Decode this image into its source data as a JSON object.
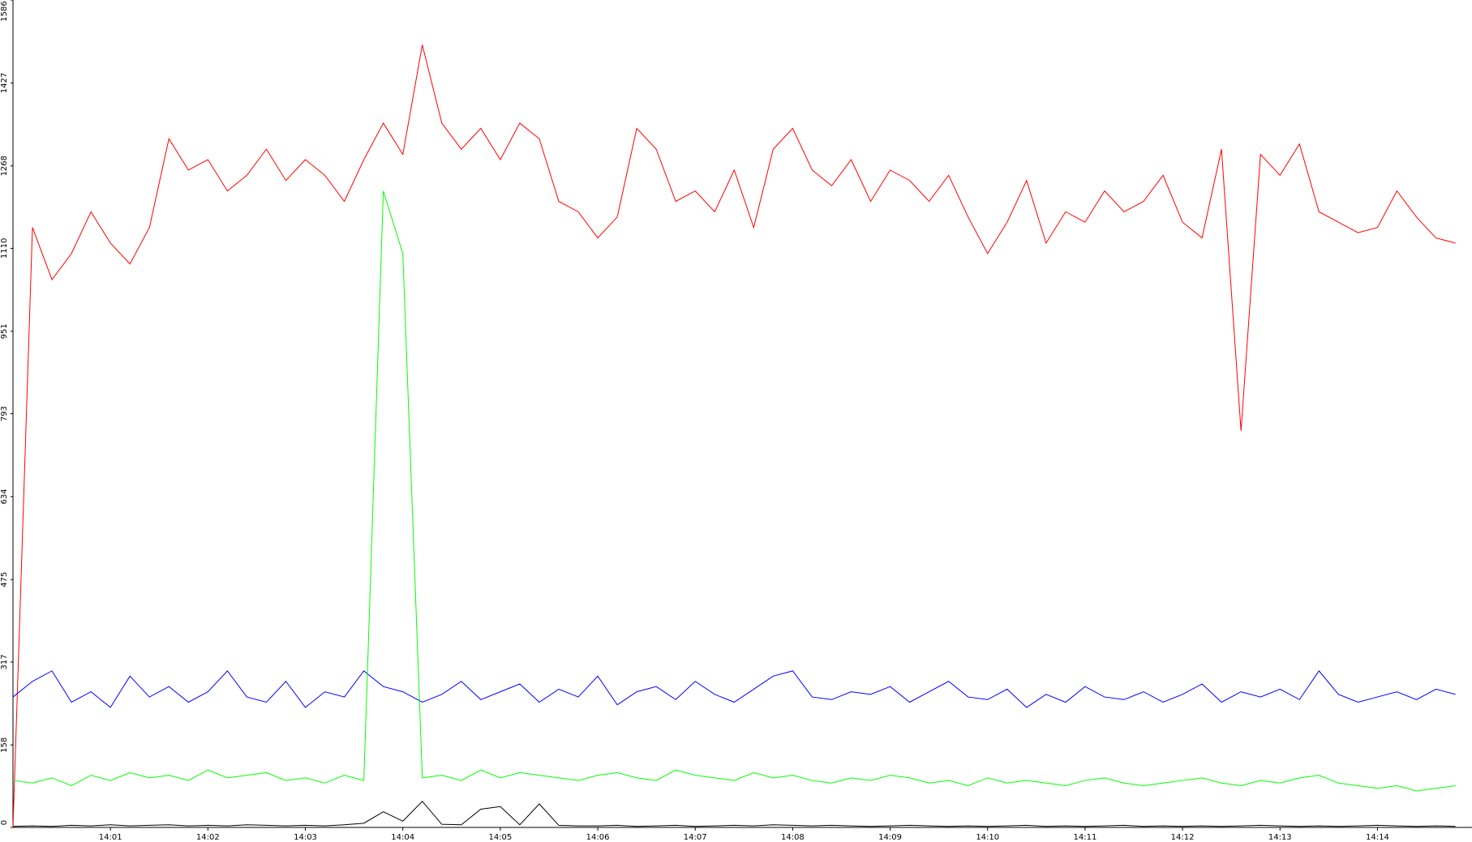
{
  "chart_data": {
    "type": "line",
    "x": [
      0,
      0.2,
      0.4,
      0.6,
      0.8,
      1,
      1.2,
      1.4,
      1.6,
      1.8,
      2,
      2.2,
      2.4,
      2.6,
      2.8,
      3,
      3.2,
      3.4,
      3.6,
      3.8,
      4,
      4.2,
      4.4,
      4.6,
      4.8,
      5,
      5.2,
      5.4,
      5.6,
      5.8,
      6,
      6.2,
      6.4,
      6.6,
      6.8,
      7,
      7.2,
      7.4,
      7.6,
      7.8,
      8,
      8.2,
      8.4,
      8.6,
      8.8,
      9,
      9.2,
      9.4,
      9.6,
      9.8,
      10,
      10.2,
      10.4,
      10.6,
      10.8,
      11,
      11.2,
      11.4,
      11.6,
      11.8,
      12,
      12.2,
      12.4,
      12.6,
      12.8,
      13,
      13.2,
      13.4,
      13.6,
      13.8,
      14,
      14.2,
      14.4,
      14.6,
      14.8
    ],
    "series": [
      {
        "color": "#ff0000",
        "values": [
          0,
          1150,
          1050,
          1100,
          1180,
          1120,
          1080,
          1150,
          1320,
          1260,
          1280,
          1220,
          1250,
          1300,
          1240,
          1280,
          1250,
          1200,
          1280,
          1350,
          1290,
          1500,
          1350,
          1300,
          1340,
          1280,
          1350,
          1320,
          1200,
          1180,
          1130,
          1170,
          1340,
          1300,
          1200,
          1220,
          1180,
          1260,
          1150,
          1300,
          1340,
          1260,
          1230,
          1280,
          1200,
          1260,
          1240,
          1200,
          1250,
          1170,
          1100,
          1160,
          1240,
          1120,
          1180,
          1160,
          1220,
          1180,
          1200,
          1250,
          1160,
          1130,
          1300,
          760,
          1290,
          1250,
          1310,
          1180,
          1160,
          1140,
          1150,
          1220,
          1170,
          1130,
          1120
        ]
      },
      {
        "color": "#0000ff",
        "values": [
          250,
          280,
          300,
          240,
          260,
          230,
          290,
          250,
          270,
          240,
          260,
          300,
          250,
          240,
          280,
          230,
          260,
          250,
          300,
          270,
          260,
          240,
          255,
          280,
          245,
          260,
          275,
          240,
          265,
          250,
          290,
          235,
          260,
          270,
          245,
          280,
          255,
          240,
          265,
          290,
          300,
          250,
          245,
          260,
          255,
          270,
          240,
          260,
          280,
          250,
          245,
          265,
          230,
          255,
          240,
          270,
          250,
          245,
          260,
          240,
          255,
          275,
          240,
          260,
          250,
          265,
          245,
          300,
          255,
          240,
          250,
          260,
          245,
          265,
          255
        ]
      },
      {
        "color": "#00ff00",
        "values": [
          90,
          85,
          95,
          80,
          100,
          90,
          105,
          95,
          100,
          90,
          110,
          95,
          100,
          105,
          90,
          95,
          85,
          100,
          90,
          1220,
          1100,
          95,
          100,
          90,
          110,
          95,
          105,
          100,
          95,
          90,
          100,
          105,
          95,
          90,
          110,
          100,
          95,
          90,
          105,
          95,
          100,
          90,
          85,
          95,
          90,
          100,
          95,
          85,
          90,
          80,
          95,
          85,
          90,
          85,
          80,
          90,
          95,
          85,
          80,
          85,
          90,
          95,
          85,
          80,
          90,
          85,
          95,
          100,
          85,
          80,
          75,
          80,
          70,
          75,
          80
        ]
      },
      {
        "color": "#000000",
        "values": [
          2,
          3,
          2,
          4,
          3,
          5,
          3,
          4,
          5,
          3,
          4,
          3,
          5,
          4,
          3,
          4,
          3,
          5,
          8,
          30,
          12,
          50,
          6,
          5,
          35,
          40,
          5,
          45,
          4,
          3,
          3,
          4,
          2,
          3,
          4,
          2,
          3,
          4,
          3,
          5,
          4,
          3,
          4,
          3,
          2,
          3,
          4,
          3,
          2,
          3,
          2,
          3,
          4,
          2,
          3,
          2,
          3,
          4,
          2,
          3,
          2,
          3,
          2,
          3,
          4,
          3,
          2,
          3,
          2,
          3,
          4,
          3,
          2,
          3,
          2
        ]
      }
    ],
    "xlim": [
      0,
      14.97
    ],
    "xticks": [
      {
        "value": 1,
        "label": "14:01"
      },
      {
        "value": 2,
        "label": "14:02"
      },
      {
        "value": 3,
        "label": "14:03"
      },
      {
        "value": 4,
        "label": "14:04"
      },
      {
        "value": 5,
        "label": "14:05"
      },
      {
        "value": 6,
        "label": "14:06"
      },
      {
        "value": 7,
        "label": "14:07"
      },
      {
        "value": 8,
        "label": "14:08"
      },
      {
        "value": 9,
        "label": "14:09"
      },
      {
        "value": 10,
        "label": "14:10"
      },
      {
        "value": 11,
        "label": "14:11"
      },
      {
        "value": 12,
        "label": "14:12"
      },
      {
        "value": 13,
        "label": "14:13"
      },
      {
        "value": 14,
        "label": "14:14"
      }
    ],
    "ylim": [
      0,
      1586
    ],
    "yticks": [
      0,
      158,
      317,
      475,
      634,
      793,
      951,
      1110,
      1268,
      1427,
      1586
    ],
    "grid": false
  }
}
